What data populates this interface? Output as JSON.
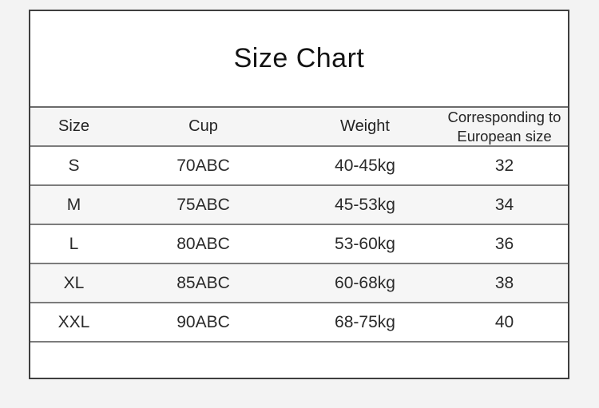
{
  "page": {
    "background_color": "#f3f3f3",
    "card_background": "#ffffff",
    "outer_border_color": "#3f3f3f",
    "divider_color": "#7c7c7c",
    "header_row_background": "#f5f5f5",
    "alt_row_background": "#f6f6f6",
    "text_color": "#2a2a2a"
  },
  "chart_data": {
    "type": "table",
    "title": "Size Chart",
    "columns": [
      "Size",
      "Cup",
      "Weight",
      "Corresponding to European size"
    ],
    "rows": [
      [
        "S",
        "70ABC",
        "40-45kg",
        "32"
      ],
      [
        "M",
        "75ABC",
        "45-53kg",
        "34"
      ],
      [
        "L",
        "80ABC",
        "53-60kg",
        "36"
      ],
      [
        "XL",
        "85ABC",
        "60-68kg",
        "38"
      ],
      [
        "XXL",
        "90ABC",
        "68-75kg",
        "40"
      ]
    ]
  }
}
